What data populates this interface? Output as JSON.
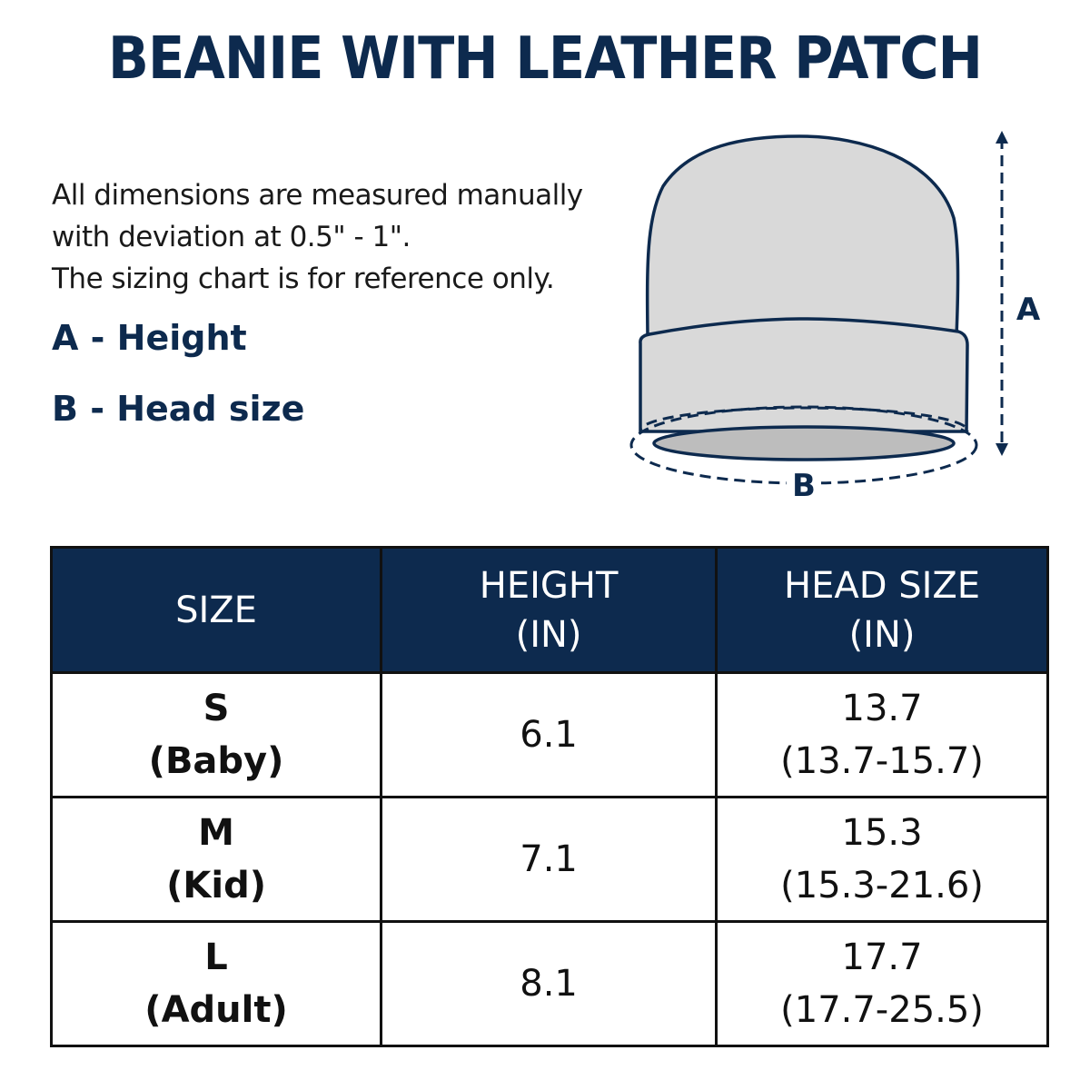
{
  "title": "BEANIE WITH LEATHER PATCH",
  "notes": [
    "All dimensions are measured manually",
    "with deviation at 0.5\" - 1\".",
    "The sizing chart is for reference only."
  ],
  "legend": {
    "a": "A - Height",
    "b": "B - Head size"
  },
  "diagram": {
    "label_a": "A",
    "label_b": "B",
    "outline_color": "#0d2a4e",
    "fill_color": "#d9d9d9"
  },
  "table": {
    "headers": [
      {
        "line1": "SIZE",
        "line2": ""
      },
      {
        "line1": "HEIGHT",
        "line2": "(IN)"
      },
      {
        "line1": "HEAD SIZE",
        "line2": "(IN)"
      }
    ],
    "rows": [
      {
        "size": "S",
        "label": "(Baby)",
        "height": "6.1",
        "head": "13.7",
        "head_range": "(13.7-15.7)"
      },
      {
        "size": "M",
        "label": "(Kid)",
        "height": "7.1",
        "head": "15.3",
        "head_range": "(15.3-21.6)"
      },
      {
        "size": "L",
        "label": "(Adult)",
        "height": "8.1",
        "head": "17.7",
        "head_range": "(17.7-25.5)"
      }
    ]
  },
  "colors": {
    "navy": "#0d2a4e"
  }
}
